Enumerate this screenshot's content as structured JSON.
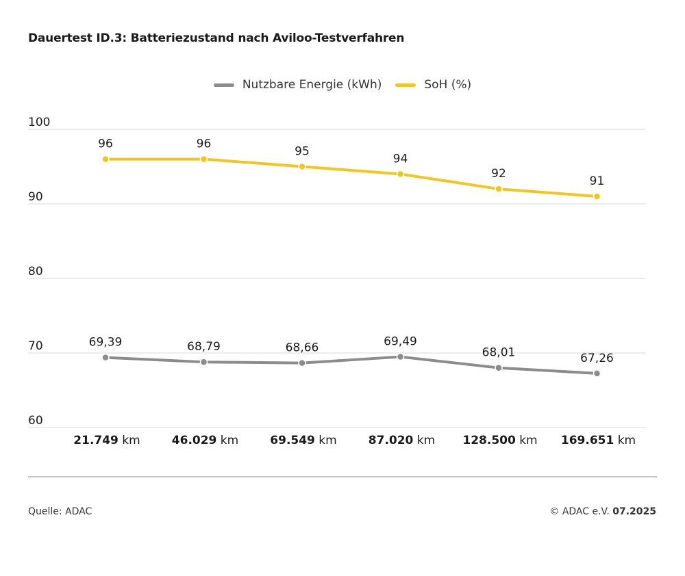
{
  "title": "Dauertest ID.3: Batteriezustand nach Aviloo-Testverfahren",
  "footer": {
    "source": "Quelle: ADAC",
    "copyright": "© ADAC e.V.",
    "date": "07.2025"
  },
  "colors": {
    "energy": "#8c8c8c",
    "soh": "#f2c61f",
    "grid": "#e1e1e1",
    "text": "#1a1a1a"
  },
  "chart_data": {
    "type": "line",
    "categories": [
      {
        "num": "21.749",
        "unit": "km"
      },
      {
        "num": "46.029",
        "unit": "km"
      },
      {
        "num": "69.549",
        "unit": "km"
      },
      {
        "num": "87.020",
        "unit": "km"
      },
      {
        "num": "128.500",
        "unit": "km"
      },
      {
        "num": "169.651",
        "unit": "km"
      }
    ],
    "ylim": [
      60,
      100
    ],
    "yticks": [
      "60",
      "70",
      "80",
      "90",
      "100"
    ],
    "grid": true,
    "legend_position": "top-center",
    "series": [
      {
        "name": "Nutzbare Energie (kWh)",
        "color": "#8c8c8c",
        "values": [
          69.39,
          68.79,
          68.66,
          69.49,
          68.01,
          67.26
        ],
        "labels": [
          "69,39",
          "68,79",
          "68,66",
          "69,49",
          "68,01",
          "67,26"
        ]
      },
      {
        "name": "SoH (%)",
        "color": "#f2c61f",
        "values": [
          96,
          96,
          95,
          94,
          92,
          91
        ],
        "labels": [
          "96",
          "96",
          "95",
          "94",
          "92",
          "91"
        ]
      }
    ]
  }
}
